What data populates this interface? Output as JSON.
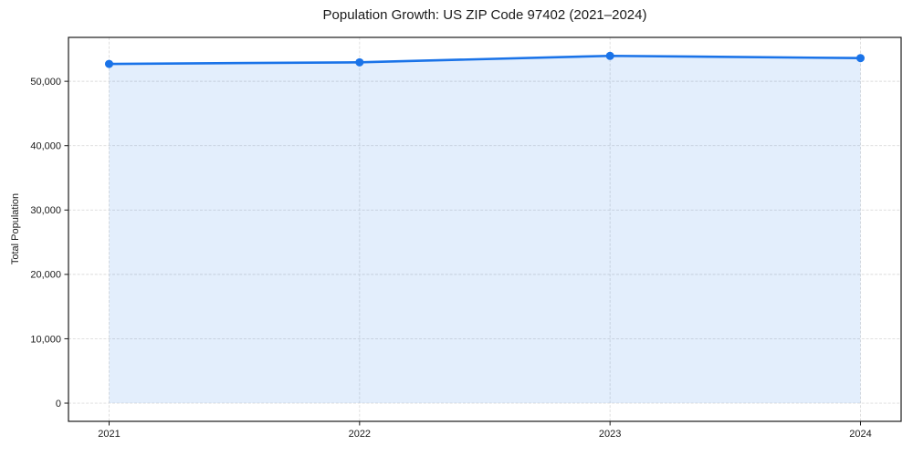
{
  "chart_data": {
    "type": "area",
    "title": "Population Growth: US ZIP Code 97402 (2021–2024)",
    "xlabel": "",
    "ylabel": "Total Population",
    "categories": [
      "2021",
      "2022",
      "2023",
      "2024"
    ],
    "series": [
      {
        "name": "Total Population",
        "values": [
          52700,
          52950,
          53950,
          53600
        ]
      }
    ],
    "ylim": [
      -2830,
      56820
    ],
    "yticks": [
      0,
      10000,
      20000,
      30000,
      40000,
      50000
    ],
    "ytick_labels": [
      "0",
      "10,000",
      "20,000",
      "30,000",
      "40,000",
      "50,000"
    ],
    "grid": true,
    "grid_style": "dashed",
    "legend": false,
    "colors": {
      "line": "#1a73e8",
      "marker": "#1a73e8",
      "fill": "rgba(26,115,232,0.12)",
      "grid": "#dcdcdc",
      "spine": "#1a1a1a",
      "text": "#1a1a1a"
    }
  }
}
